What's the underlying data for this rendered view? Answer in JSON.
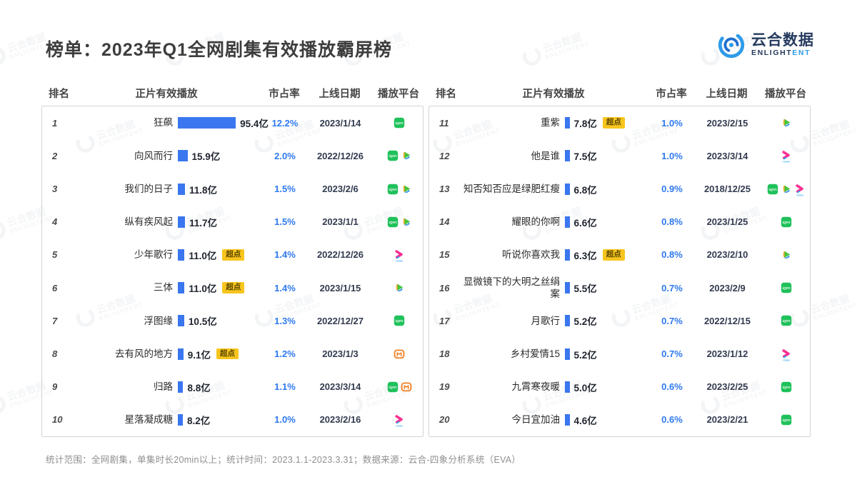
{
  "title": "榜单：2023年Q1全网剧集有效播放霸屏榜",
  "logo": {
    "name_cn": "云合数据",
    "en_dark": "ENLIGHT",
    "en_blue": "ENT"
  },
  "columns": [
    "排名",
    "正片有效播放",
    "市占率",
    "上线日期",
    "播放平台"
  ],
  "badge_label": "超点",
  "footer": "统计范围：全网剧集，单集时长20min以上；统计时间：2023.1.1-2023.3.31；数据来源：云合-四象分析系统（EVA）",
  "watermark": {
    "line1": "云合数据",
    "line2": "ENLIGHTENT"
  },
  "colors": {
    "bar": "#3a76ef",
    "percent_text": "#2e79f0",
    "badge_bg": "#f7c51e",
    "badge_text": "#5d4800",
    "iqiyi_green": "#1fc15a",
    "mgtv_orange": "#f0862e",
    "youku_pink": "#fb2f93",
    "youku_blue": "#28a3ef",
    "tencent_green": "#45c53f",
    "tencent_blue": "#2e8fe8",
    "tencent_orange": "#f8a41c",
    "title_text": "#3d3d3d",
    "border": "#d4d4d4",
    "footer_text": "#8f8f8f",
    "logo_blue": "#2e9be9",
    "logo_navy": "#253a5e"
  },
  "chart_data": {
    "type": "bar",
    "title": "榜单：2023年Q1全网剧集有效播放霸屏榜",
    "xlabel": "正片有效播放",
    "ylabel": "排名",
    "unit": "亿",
    "value_axis_max": 95.4,
    "legend_position": "none",
    "grid": false,
    "categories": [
      "狂飙",
      "向风而行",
      "我们的日子",
      "纵有疾风起",
      "少年歌行",
      "三体",
      "浮图缘",
      "去有风的地方",
      "归路",
      "星落凝成糖",
      "重紫",
      "他是谁",
      "知否知否应是绿肥红瘦",
      "耀眼的你啊",
      "听说你喜欢我",
      "显微镜下的大明之丝绢案",
      "月歌行",
      "乡村爱情15",
      "九霄寒夜暖",
      "今日宜加油"
    ],
    "values": [
      95.4,
      15.9,
      11.8,
      11.7,
      11.0,
      11.0,
      10.5,
      9.1,
      8.8,
      8.2,
      7.8,
      7.5,
      6.8,
      6.6,
      6.3,
      5.5,
      5.2,
      5.2,
      5.0,
      4.6
    ],
    "market_share": [
      "12.2%",
      "2.0%",
      "1.5%",
      "1.5%",
      "1.4%",
      "1.4%",
      "1.3%",
      "1.2%",
      "1.1%",
      "1.0%",
      "1.0%",
      "1.0%",
      "0.9%",
      "0.8%",
      "0.8%",
      "0.7%",
      "0.7%",
      "0.7%",
      "0.6%",
      "0.6%"
    ],
    "release_dates": [
      "2023/1/14",
      "2022/12/26",
      "2023/2/6",
      "2023/1/1",
      "2022/12/26",
      "2023/1/15",
      "2022/12/27",
      "2023/1/3",
      "2023/3/14",
      "2023/2/16",
      "2023/2/15",
      "2023/3/14",
      "2018/12/25",
      "2023/1/25",
      "2023/2/10",
      "2023/2/9",
      "2022/12/15",
      "2023/1/12",
      "2023/2/25",
      "2023/2/21"
    ],
    "platforms": [
      [
        "iqiyi"
      ],
      [
        "iqiyi",
        "tencent"
      ],
      [
        "iqiyi",
        "tencent"
      ],
      [
        "iqiyi",
        "tencent"
      ],
      [
        "youku"
      ],
      [
        "tencent"
      ],
      [
        "iqiyi"
      ],
      [
        "mgtv"
      ],
      [
        "iqiyi",
        "mgtv"
      ],
      [
        "youku"
      ],
      [
        "tencent"
      ],
      [
        "youku"
      ],
      [
        "iqiyi",
        "tencent",
        "youku"
      ],
      [
        "iqiyi"
      ],
      [
        "tencent"
      ],
      [
        "iqiyi"
      ],
      [
        "iqiyi"
      ],
      [
        "youku"
      ],
      [
        "iqiyi"
      ],
      [
        "iqiyi"
      ]
    ],
    "premium_badge": [
      false,
      false,
      false,
      false,
      true,
      true,
      false,
      true,
      false,
      false,
      true,
      false,
      false,
      false,
      true,
      false,
      false,
      false,
      false,
      false
    ]
  }
}
